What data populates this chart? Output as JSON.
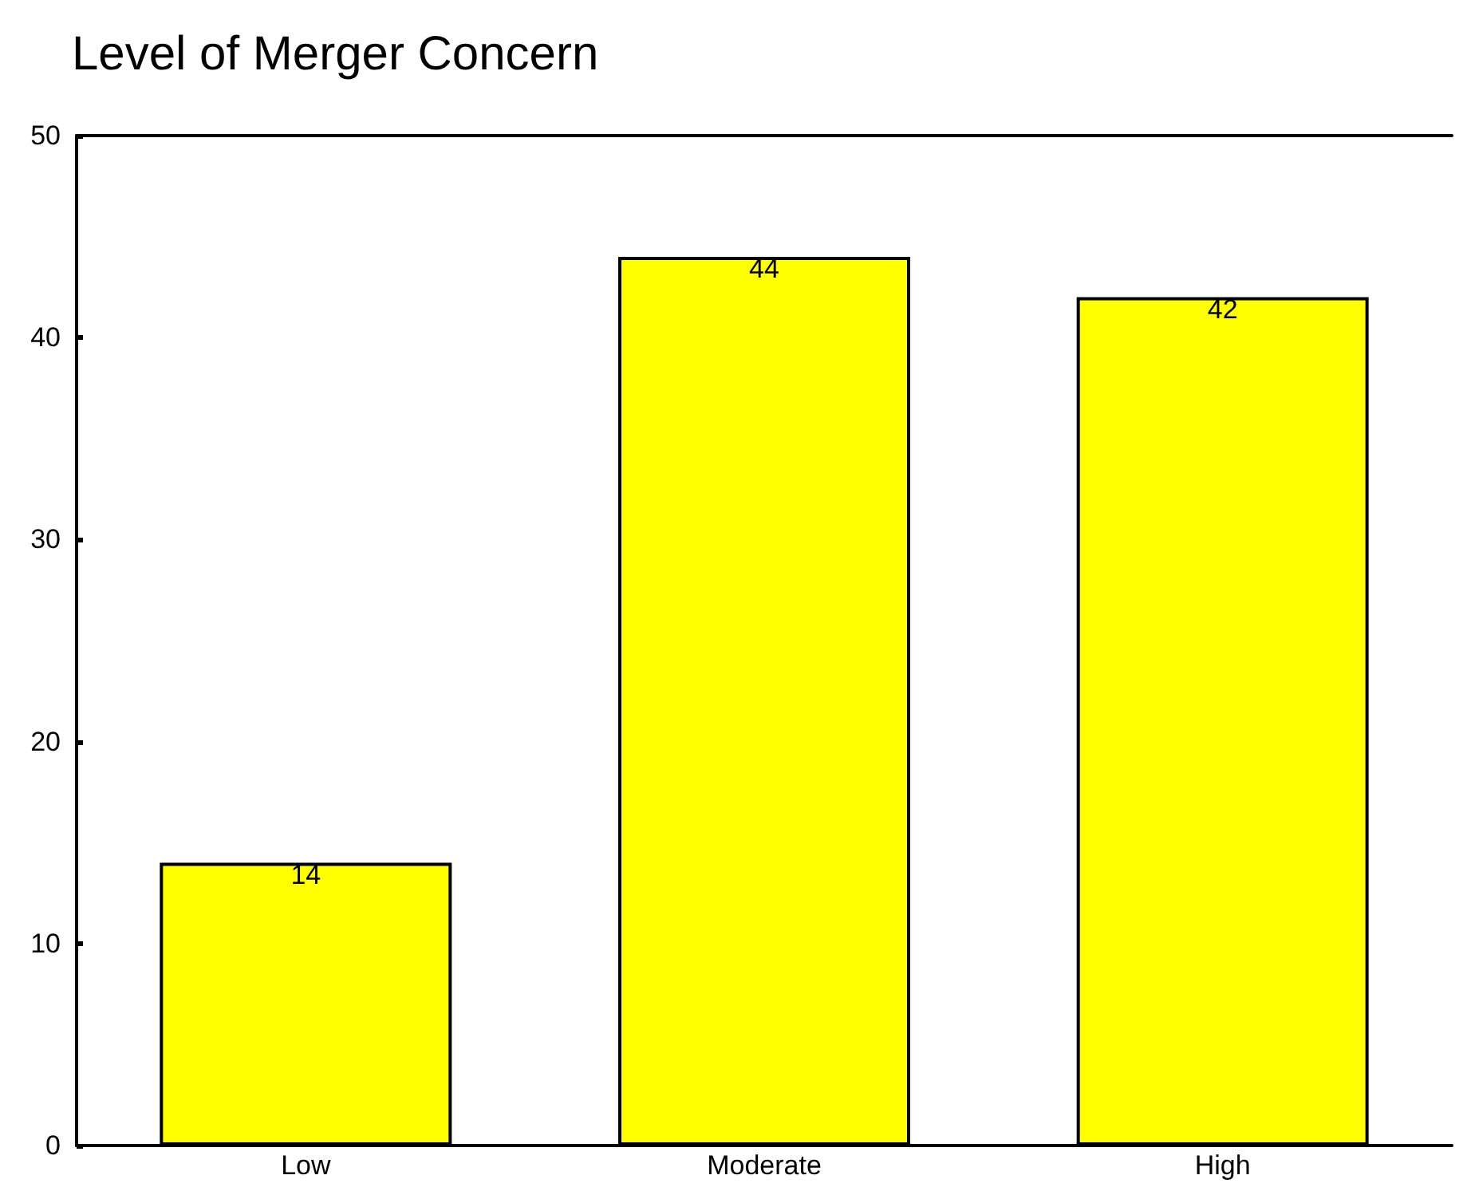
{
  "chart_data": {
    "type": "bar",
    "title": "Level of Merger Concern",
    "categories": [
      "Low",
      "Moderate",
      "High"
    ],
    "values": [
      14,
      44,
      42
    ],
    "color": "#ffff00",
    "ylim": [
      0,
      50
    ],
    "yticks": [
      0,
      10,
      20,
      30,
      40,
      50
    ],
    "grid": false,
    "data_labels": true
  }
}
